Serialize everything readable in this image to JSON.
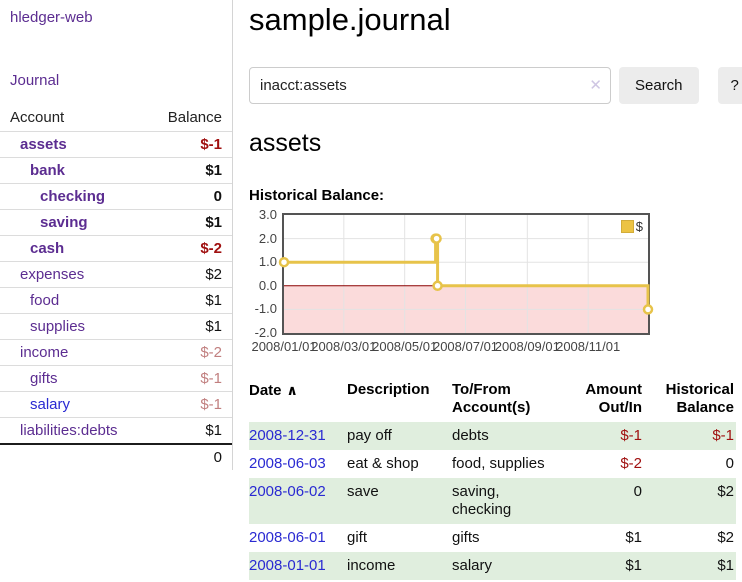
{
  "app": {
    "brand": "hledger-web",
    "nav_journal": "Journal"
  },
  "sidebar": {
    "accounts_header": {
      "account": "Account",
      "balance": "Balance"
    },
    "accounts": [
      {
        "name": "assets",
        "depth": 1,
        "balance": "$-1",
        "bold": true,
        "negative": "strong"
      },
      {
        "name": "bank",
        "depth": 2,
        "balance": "$1",
        "bold": true,
        "negative": null
      },
      {
        "name": "checking",
        "depth": 3,
        "balance": "0",
        "bold": true,
        "negative": null
      },
      {
        "name": "saving",
        "depth": 3,
        "balance": "$1",
        "bold": true,
        "negative": null
      },
      {
        "name": "cash",
        "depth": 2,
        "balance": "$-2",
        "bold": true,
        "negative": "strong"
      },
      {
        "name": "expenses",
        "depth": 1,
        "balance": "$2",
        "bold": false,
        "negative": null
      },
      {
        "name": "food",
        "depth": 2,
        "balance": "$1",
        "bold": false,
        "negative": null
      },
      {
        "name": "supplies",
        "depth": 2,
        "balance": "$1",
        "bold": false,
        "negative": null
      },
      {
        "name": "income",
        "depth": 1,
        "balance": "$-2",
        "bold": false,
        "negative": "soft"
      },
      {
        "name": "gifts",
        "depth": 2,
        "balance": "$-1",
        "bold": false,
        "negative": "soft"
      },
      {
        "name": "salary",
        "depth": 2,
        "balance": "$-1",
        "bold": false,
        "negative": "soft",
        "link": "blue"
      },
      {
        "name": "liabilities:debts",
        "depth": 1,
        "balance": "$1",
        "bold": false,
        "negative": null
      }
    ],
    "total": "0"
  },
  "main": {
    "title": "sample.journal",
    "search": {
      "value": "inacct:assets",
      "clear_icon": "✕",
      "button": "Search",
      "help": "?"
    },
    "account_heading": "assets",
    "chart_heading": "Historical Balance:"
  },
  "chart_data": {
    "type": "line",
    "step": true,
    "title": "Historical Balance:",
    "series": [
      {
        "name": "$",
        "color": "#e7c34a",
        "points": [
          {
            "date": "2008-01-01",
            "day": 0,
            "value": 1
          },
          {
            "date": "2008-06-01",
            "day": 152,
            "value": 2
          },
          {
            "date": "2008-06-02",
            "day": 153,
            "value": 2
          },
          {
            "date": "2008-06-03",
            "day": 154,
            "value": 0
          },
          {
            "date": "2008-12-31",
            "day": 365,
            "value": -1
          }
        ]
      }
    ],
    "ylim": [
      -2,
      3
    ],
    "y_ticks": [
      {
        "label": "3.0",
        "value": 3
      },
      {
        "label": "2.0",
        "value": 2
      },
      {
        "label": "1.0",
        "value": 1
      },
      {
        "label": "0.0",
        "value": 0
      },
      {
        "label": "-1.0",
        "value": -1
      },
      {
        "label": "-2.0",
        "value": -2
      }
    ],
    "x_range_days": [
      0,
      365
    ],
    "x_ticks": [
      {
        "label": "2008/01/01",
        "day": 0
      },
      {
        "label": "2008/03/01",
        "day": 60
      },
      {
        "label": "2008/05/01",
        "day": 121
      },
      {
        "label": "2008/07/01",
        "day": 182
      },
      {
        "label": "2008/09/01",
        "day": 244
      },
      {
        "label": "2008/11/01",
        "day": 305
      }
    ],
    "legend_position": "top-right",
    "grid": true,
    "negative_region_color": "#fbdbdb",
    "zero_line_color": "#8b0000",
    "grid_color": "#e3e3e3",
    "border_color": "#545454"
  },
  "register": {
    "sort_icon": "∧",
    "headers": {
      "date": "Date",
      "description": "Description",
      "tofrom": "To/From Account(s)",
      "amount": "Amount Out/In",
      "balance": "Historical Balance"
    },
    "rows": [
      {
        "date": "2008-12-31",
        "description": "pay off",
        "accounts": "debts",
        "amount": "$-1",
        "balance": "$-1"
      },
      {
        "date": "2008-06-03",
        "description": "eat & shop",
        "accounts": "food, supplies",
        "amount": "$-2",
        "balance": "0"
      },
      {
        "date": "2008-06-02",
        "description": "save",
        "accounts": "saving, checking",
        "amount": "0",
        "balance": "$2"
      },
      {
        "date": "2008-06-01",
        "description": "gift",
        "accounts": "gifts",
        "amount": "$1",
        "balance": "$2"
      },
      {
        "date": "2008-01-01",
        "description": "income",
        "accounts": "salary",
        "amount": "$1",
        "balance": "$1"
      }
    ]
  }
}
